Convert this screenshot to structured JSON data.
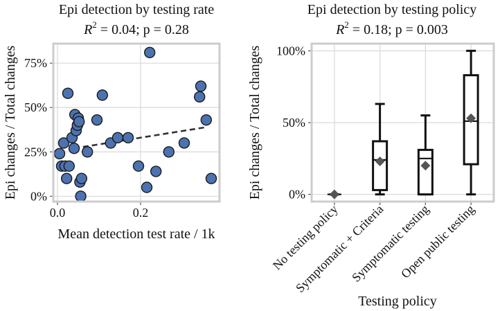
{
  "chart_data": [
    {
      "type": "scatter",
      "title": "Epi detection by testing rate",
      "subtitle_prefix": "R",
      "subtitle_sup": "2",
      "subtitle_rest": " = 0.04; p = 0.28",
      "xlabel": "Mean detection test rate / 1k",
      "ylabel": "Epi changes / Total changes",
      "xlim": [
        -0.01,
        0.39
      ],
      "ylim": [
        -0.03,
        0.86
      ],
      "xticks": [
        0.0,
        0.2
      ],
      "xtick_labels": [
        "0.0",
        "0.2"
      ],
      "yticks": [
        0,
        0.25,
        0.5,
        0.75
      ],
      "ytick_labels": [
        "0%",
        "25%",
        "50%",
        "75%"
      ],
      "grid": true,
      "marker_color": "#4c72b0",
      "trend_color": "#333333",
      "points": [
        {
          "x": 0.005,
          "y": 0.24
        },
        {
          "x": 0.01,
          "y": 0.17
        },
        {
          "x": 0.015,
          "y": 0.3
        },
        {
          "x": 0.018,
          "y": 0.17
        },
        {
          "x": 0.022,
          "y": 0.1
        },
        {
          "x": 0.025,
          "y": 0.58
        },
        {
          "x": 0.028,
          "y": 0.17
        },
        {
          "x": 0.035,
          "y": 0.33
        },
        {
          "x": 0.04,
          "y": 0.27
        },
        {
          "x": 0.042,
          "y": 0.46
        },
        {
          "x": 0.045,
          "y": 0.37
        },
        {
          "x": 0.048,
          "y": 0.4
        },
        {
          "x": 0.05,
          "y": 0.44
        },
        {
          "x": 0.052,
          "y": 0.42
        },
        {
          "x": 0.054,
          "y": 0.08
        },
        {
          "x": 0.056,
          "y": 0.0
        },
        {
          "x": 0.058,
          "y": 0.1
        },
        {
          "x": 0.072,
          "y": 0.25
        },
        {
          "x": 0.095,
          "y": 0.43
        },
        {
          "x": 0.108,
          "y": 0.57
        },
        {
          "x": 0.128,
          "y": 0.3
        },
        {
          "x": 0.145,
          "y": 0.33
        },
        {
          "x": 0.17,
          "y": 0.33
        },
        {
          "x": 0.195,
          "y": 0.17
        },
        {
          "x": 0.215,
          "y": 0.05
        },
        {
          "x": 0.222,
          "y": 0.81
        },
        {
          "x": 0.237,
          "y": 0.14
        },
        {
          "x": 0.268,
          "y": 0.25
        },
        {
          "x": 0.305,
          "y": 0.3
        },
        {
          "x": 0.342,
          "y": 0.56
        },
        {
          "x": 0.345,
          "y": 0.62
        },
        {
          "x": 0.358,
          "y": 0.43
        },
        {
          "x": 0.37,
          "y": 0.1
        }
      ],
      "trend": {
        "x": [
          0.04,
          0.36
        ],
        "y": [
          0.27,
          0.39
        ]
      }
    },
    {
      "type": "box",
      "title": "Epi detection by testing policy",
      "subtitle_prefix": "R",
      "subtitle_sup": "2",
      "subtitle_rest": " = 0.18; p = 0.003",
      "xlabel": "Testing policy",
      "ylabel": "Epi changes / Total changes",
      "ylim": [
        -0.05,
        1.05
      ],
      "yticks": [
        0,
        0.5,
        1.0
      ],
      "ytick_labels": [
        "0%",
        "50%",
        "100%"
      ],
      "grid": true,
      "categories": [
        "No testing policy",
        "Symptomatic + Criteria",
        "Symptomatic testing",
        "Open public testing"
      ],
      "boxes": [
        {
          "min": 0.0,
          "q1": 0.0,
          "median": 0.0,
          "q3": 0.0,
          "max": 0.0,
          "mean": 0.0
        },
        {
          "min": 0.0,
          "q1": 0.03,
          "median": 0.24,
          "q3": 0.37,
          "max": 0.63,
          "mean": 0.23
        },
        {
          "min": 0.0,
          "q1": 0.0,
          "median": 0.25,
          "q3": 0.31,
          "max": 0.55,
          "mean": 0.2
        },
        {
          "min": 0.0,
          "q1": 0.21,
          "median": 0.51,
          "q3": 0.83,
          "max": 1.0,
          "mean": 0.53
        }
      ],
      "mean_marker_color": "#555555"
    }
  ]
}
